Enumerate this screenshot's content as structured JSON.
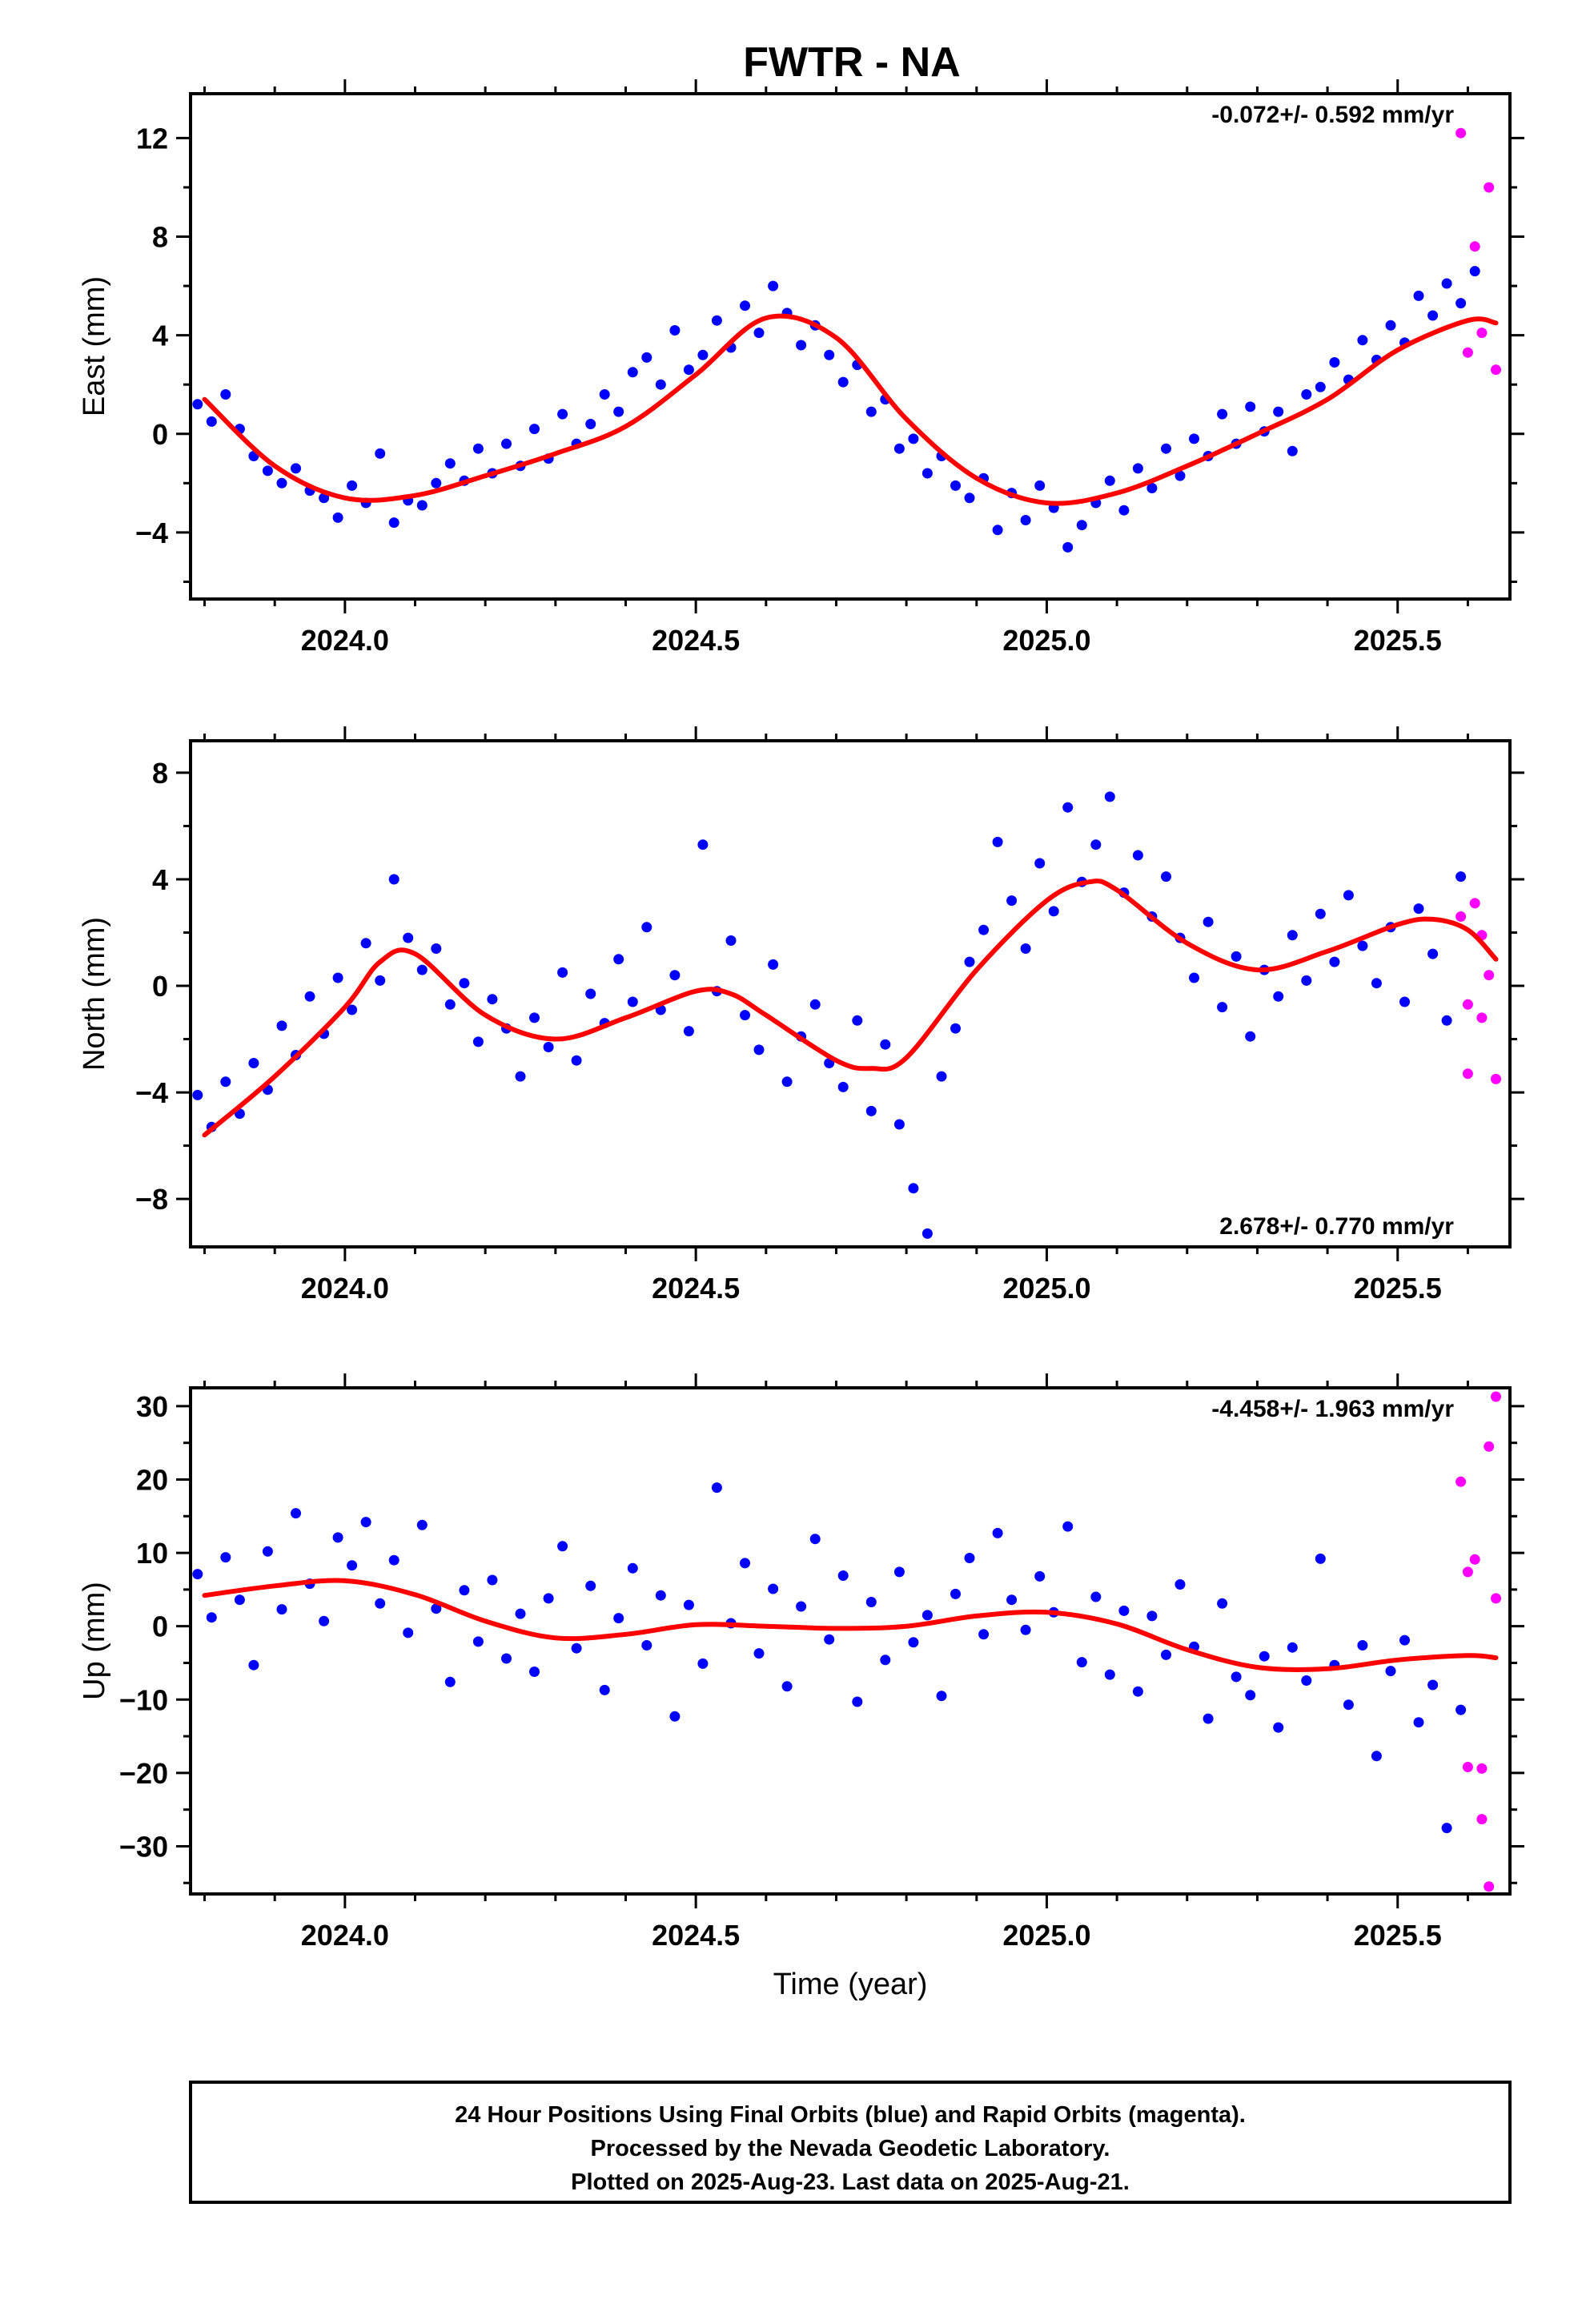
{
  "title": "FWTR - NA",
  "xlabel": "Time (year)",
  "x_tick_labels": [
    "2024.0",
    "2024.5",
    "2025.0",
    "2025.5"
  ],
  "footer": [
    "24 Hour Positions Using Final Orbits (blue) and Rapid Orbits (magenta).",
    "Processed by the Nevada Geodetic Laboratory.",
    "Plotted on 2025-Aug-23. Last data on 2025-Aug-21."
  ],
  "colors": {
    "final": "#0000ff",
    "rapid": "#ff00ff",
    "model": "#ff0000",
    "frame": "#000000"
  },
  "chart_data": [
    {
      "type": "scatter",
      "ylabel": "East (mm)",
      "rate_text": "-0.072+/- 0.592 mm/yr",
      "xlim": [
        2023.78,
        2025.66
      ],
      "ylim": [
        -6.7,
        13.8
      ],
      "yticks": [
        -4,
        0,
        4,
        8,
        12
      ],
      "grid": false,
      "model_curve": {
        "x": [
          2023.8,
          2023.9,
          2024.0,
          2024.1,
          2024.2,
          2024.3,
          2024.4,
          2024.5,
          2024.6,
          2024.7,
          2024.8,
          2024.9,
          2025.0,
          2025.1,
          2025.2,
          2025.3,
          2025.4,
          2025.5,
          2025.6,
          2025.64
        ],
        "y": [
          1.4,
          -1.3,
          -2.6,
          -2.5,
          -1.7,
          -0.8,
          0.3,
          2.4,
          4.7,
          3.9,
          0.6,
          -1.8,
          -2.8,
          -2.4,
          -1.3,
          0.0,
          1.4,
          3.4,
          4.6,
          4.5
        ]
      },
      "series": [
        {
          "name": "final",
          "x": [
            2023.79,
            2023.81,
            2023.83,
            2023.85,
            2023.87,
            2023.89,
            2023.91,
            2023.93,
            2023.95,
            2023.97,
            2023.99,
            2024.01,
            2024.03,
            2024.05,
            2024.07,
            2024.09,
            2024.11,
            2024.13,
            2024.15,
            2024.17,
            2024.19,
            2024.21,
            2024.23,
            2024.25,
            2024.27,
            2024.29,
            2024.31,
            2024.33,
            2024.35,
            2024.37,
            2024.39,
            2024.41,
            2024.43,
            2024.45,
            2024.47,
            2024.49,
            2024.51,
            2024.53,
            2024.55,
            2024.57,
            2024.59,
            2024.61,
            2024.63,
            2024.65,
            2024.67,
            2024.69,
            2024.71,
            2024.73,
            2024.75,
            2024.77,
            2024.79,
            2024.81,
            2024.83,
            2024.85,
            2024.87,
            2024.89,
            2024.91,
            2024.93,
            2024.95,
            2024.97,
            2024.99,
            2025.01,
            2025.03,
            2025.05,
            2025.07,
            2025.09,
            2025.11,
            2025.13,
            2025.15,
            2025.17,
            2025.19,
            2025.21,
            2025.23,
            2025.25,
            2025.27,
            2025.29,
            2025.31,
            2025.33,
            2025.35,
            2025.37,
            2025.39,
            2025.41,
            2025.43,
            2025.45,
            2025.47,
            2025.49,
            2025.51,
            2025.53,
            2025.55,
            2025.57,
            2025.59,
            2025.61
          ],
          "y": [
            1.2,
            0.5,
            1.6,
            0.2,
            -0.9,
            -1.5,
            -2.0,
            -1.4,
            -2.3,
            -2.6,
            -3.4,
            -2.1,
            -2.8,
            -0.8,
            -3.6,
            -2.7,
            -2.9,
            -2.0,
            -1.2,
            -1.9,
            -0.6,
            -1.6,
            -0.4,
            -1.3,
            0.2,
            -1.0,
            0.8,
            -0.4,
            0.4,
            1.6,
            0.9,
            2.5,
            3.1,
            2.0,
            4.2,
            2.6,
            3.2,
            4.6,
            3.5,
            5.2,
            4.1,
            6.0,
            4.9,
            3.6,
            4.4,
            3.2,
            2.1,
            2.8,
            0.9,
            1.4,
            -0.6,
            -0.2,
            -1.6,
            -0.9,
            -2.1,
            -2.6,
            -1.8,
            -3.9,
            -2.4,
            -3.5,
            -2.1,
            -3.0,
            -4.6,
            -3.7,
            -2.8,
            -1.9,
            -3.1,
            -1.4,
            -2.2,
            -0.6,
            -1.7,
            -0.2,
            -0.9,
            0.8,
            -0.4,
            1.1,
            0.1,
            0.9,
            -0.7,
            1.6,
            1.9,
            2.9,
            2.2,
            3.8,
            3.0,
            4.4,
            3.7,
            5.6,
            4.8,
            6.1,
            5.3,
            6.6
          ]
        },
        {
          "name": "rapid",
          "x": [
            2025.59,
            2025.6,
            2025.61,
            2025.62,
            2025.63,
            2025.64
          ],
          "y": [
            12.2,
            3.3,
            7.6,
            4.1,
            10.0,
            2.6
          ]
        }
      ]
    },
    {
      "type": "scatter",
      "ylabel": "North (mm)",
      "rate_text": "2.678+/- 0.770 mm/yr",
      "xlim": [
        2023.78,
        2025.66
      ],
      "ylim": [
        -9.8,
        9.2
      ],
      "yticks": [
        -8,
        -4,
        0,
        4,
        8
      ],
      "grid": false,
      "model_curve": {
        "x": [
          2023.8,
          2023.9,
          2024.0,
          2024.05,
          2024.1,
          2024.2,
          2024.3,
          2024.4,
          2024.5,
          2024.55,
          2024.6,
          2024.7,
          2024.75,
          2024.8,
          2024.9,
          2025.0,
          2025.06,
          2025.1,
          2025.2,
          2025.3,
          2025.4,
          2025.5,
          2025.55,
          2025.6,
          2025.64
        ],
        "y": [
          -5.6,
          -3.4,
          -0.8,
          0.9,
          1.2,
          -1.1,
          -2.0,
          -1.2,
          -0.2,
          -0.3,
          -1.1,
          -2.8,
          -3.1,
          -2.7,
          0.6,
          3.2,
          3.9,
          3.6,
          1.6,
          0.6,
          1.3,
          2.3,
          2.5,
          2.1,
          1.0
        ]
      },
      "series": [
        {
          "name": "final",
          "x": [
            2023.79,
            2023.81,
            2023.83,
            2023.85,
            2023.87,
            2023.89,
            2023.91,
            2023.93,
            2023.95,
            2023.97,
            2023.99,
            2024.01,
            2024.03,
            2024.05,
            2024.07,
            2024.09,
            2024.11,
            2024.13,
            2024.15,
            2024.17,
            2024.19,
            2024.21,
            2024.23,
            2024.25,
            2024.27,
            2024.29,
            2024.31,
            2024.33,
            2024.35,
            2024.37,
            2024.39,
            2024.41,
            2024.43,
            2024.45,
            2024.47,
            2024.49,
            2024.51,
            2024.53,
            2024.55,
            2024.57,
            2024.59,
            2024.61,
            2024.63,
            2024.65,
            2024.67,
            2024.69,
            2024.71,
            2024.73,
            2024.75,
            2024.77,
            2024.79,
            2024.81,
            2024.83,
            2024.85,
            2024.87,
            2024.89,
            2024.91,
            2024.93,
            2024.95,
            2024.97,
            2024.99,
            2025.01,
            2025.03,
            2025.05,
            2025.07,
            2025.09,
            2025.11,
            2025.13,
            2025.15,
            2025.17,
            2025.19,
            2025.21,
            2025.23,
            2025.25,
            2025.27,
            2025.29,
            2025.31,
            2025.33,
            2025.35,
            2025.37,
            2025.39,
            2025.41,
            2025.43,
            2025.45,
            2025.47,
            2025.49,
            2025.51,
            2025.53,
            2025.55,
            2025.57,
            2025.59
          ],
          "y": [
            -4.1,
            -5.3,
            -3.6,
            -4.8,
            -2.9,
            -3.9,
            -1.5,
            -2.6,
            -0.4,
            -1.8,
            0.3,
            -0.9,
            1.6,
            0.2,
            4.0,
            1.8,
            0.6,
            1.4,
            -0.7,
            0.1,
            -2.1,
            -0.5,
            -1.6,
            -3.4,
            -1.2,
            -2.3,
            0.5,
            -2.8,
            -0.3,
            -1.4,
            1.0,
            -0.6,
            2.2,
            -0.9,
            0.4,
            -1.7,
            5.3,
            -0.2,
            1.7,
            -1.1,
            -2.4,
            0.8,
            -3.6,
            -1.9,
            -0.7,
            -2.9,
            -3.8,
            -1.3,
            -4.7,
            -2.2,
            -5.2,
            -7.6,
            -9.3,
            -3.4,
            -1.6,
            0.9,
            2.1,
            5.4,
            3.2,
            1.4,
            4.6,
            2.8,
            6.7,
            3.9,
            5.3,
            7.1,
            3.5,
            4.9,
            2.6,
            4.1,
            1.8,
            0.3,
            2.4,
            -0.8,
            1.1,
            -1.9,
            0.6,
            -0.4,
            1.9,
            0.2,
            2.7,
            0.9,
            3.4,
            1.5,
            0.1,
            2.2,
            -0.6,
            2.9,
            1.2,
            -1.3,
            4.1
          ]
        },
        {
          "name": "rapid",
          "x": [
            2025.59,
            2025.6,
            2025.61,
            2025.62,
            2025.63,
            2025.64,
            2025.6,
            2025.62
          ],
          "y": [
            2.6,
            -3.3,
            3.1,
            -1.2,
            0.4,
            -3.5,
            -0.7,
            1.9
          ]
        }
      ]
    },
    {
      "type": "scatter",
      "ylabel": "Up (mm)",
      "rate_text": "-4.458+/- 1.963 mm/yr",
      "xlim": [
        2023.78,
        2025.66
      ],
      "ylim": [
        -36.5,
        32.5
      ],
      "yticks": [
        -30,
        -20,
        -10,
        0,
        10,
        20,
        30
      ],
      "grid": false,
      "model_curve": {
        "x": [
          2023.8,
          2023.9,
          2024.0,
          2024.1,
          2024.2,
          2024.3,
          2024.4,
          2024.5,
          2024.6,
          2024.7,
          2024.8,
          2024.9,
          2025.0,
          2025.1,
          2025.2,
          2025.3,
          2025.4,
          2025.5,
          2025.6,
          2025.64
        ],
        "y": [
          4.2,
          5.5,
          6.2,
          4.3,
          0.7,
          -1.6,
          -1.1,
          0.2,
          0.0,
          -0.3,
          0.0,
          1.4,
          1.9,
          0.3,
          -3.2,
          -5.6,
          -5.8,
          -4.6,
          -4.0,
          -4.3
        ]
      },
      "series": [
        {
          "name": "final",
          "x": [
            2023.79,
            2023.81,
            2023.83,
            2023.85,
            2023.87,
            2023.89,
            2023.91,
            2023.93,
            2023.95,
            2023.97,
            2023.99,
            2024.01,
            2024.03,
            2024.05,
            2024.07,
            2024.09,
            2024.11,
            2024.13,
            2024.15,
            2024.17,
            2024.19,
            2024.21,
            2024.23,
            2024.25,
            2024.27,
            2024.29,
            2024.31,
            2024.33,
            2024.35,
            2024.37,
            2024.39,
            2024.41,
            2024.43,
            2024.45,
            2024.47,
            2024.49,
            2024.51,
            2024.53,
            2024.55,
            2024.57,
            2024.59,
            2024.61,
            2024.63,
            2024.65,
            2024.67,
            2024.69,
            2024.71,
            2024.73,
            2024.75,
            2024.77,
            2024.79,
            2024.81,
            2024.83,
            2024.85,
            2024.87,
            2024.89,
            2024.91,
            2024.93,
            2024.95,
            2024.97,
            2024.99,
            2025.01,
            2025.03,
            2025.05,
            2025.07,
            2025.09,
            2025.11,
            2025.13,
            2025.15,
            2025.17,
            2025.19,
            2025.21,
            2025.23,
            2025.25,
            2025.27,
            2025.29,
            2025.31,
            2025.33,
            2025.35,
            2025.37,
            2025.39,
            2025.41,
            2025.43,
            2025.45,
            2025.47,
            2025.49,
            2025.51,
            2025.53,
            2025.55,
            2025.57,
            2025.59
          ],
          "y": [
            7.1,
            1.2,
            9.4,
            3.6,
            -5.3,
            10.2,
            2.3,
            15.4,
            5.8,
            0.7,
            12.1,
            8.3,
            14.2,
            3.1,
            9.0,
            -0.9,
            13.8,
            2.4,
            -7.6,
            4.9,
            -2.1,
            6.3,
            -4.4,
            1.7,
            -6.2,
            3.8,
            10.9,
            -3.0,
            5.5,
            -8.7,
            1.1,
            7.9,
            -2.6,
            4.2,
            -12.3,
            2.9,
            -5.1,
            18.9,
            0.4,
            8.6,
            -3.7,
            5.1,
            -8.2,
            2.7,
            11.9,
            -1.8,
            6.9,
            -10.3,
            3.3,
            -4.6,
            7.4,
            -2.2,
            1.5,
            -9.5,
            4.4,
            9.3,
            -1.1,
            12.7,
            3.6,
            -0.5,
            6.8,
            1.9,
            13.6,
            -4.9,
            4.0,
            -6.6,
            2.1,
            -8.9,
            1.4,
            -3.9,
            5.7,
            -2.8,
            -12.6,
            3.1,
            -6.9,
            -9.4,
            -4.1,
            -13.8,
            -2.9,
            -7.4,
            9.2,
            -5.3,
            -10.7,
            -2.6,
            -17.7,
            -6.1,
            -1.9,
            -13.1,
            -8.0,
            -27.5,
            -11.4
          ]
        },
        {
          "name": "rapid",
          "x": [
            2025.59,
            2025.6,
            2025.61,
            2025.62,
            2025.63,
            2025.64,
            2025.6,
            2025.62,
            2025.63,
            2025.64
          ],
          "y": [
            19.7,
            -19.2,
            9.1,
            -26.3,
            24.5,
            31.3,
            7.4,
            -19.4,
            -35.5,
            3.8
          ]
        }
      ]
    }
  ]
}
